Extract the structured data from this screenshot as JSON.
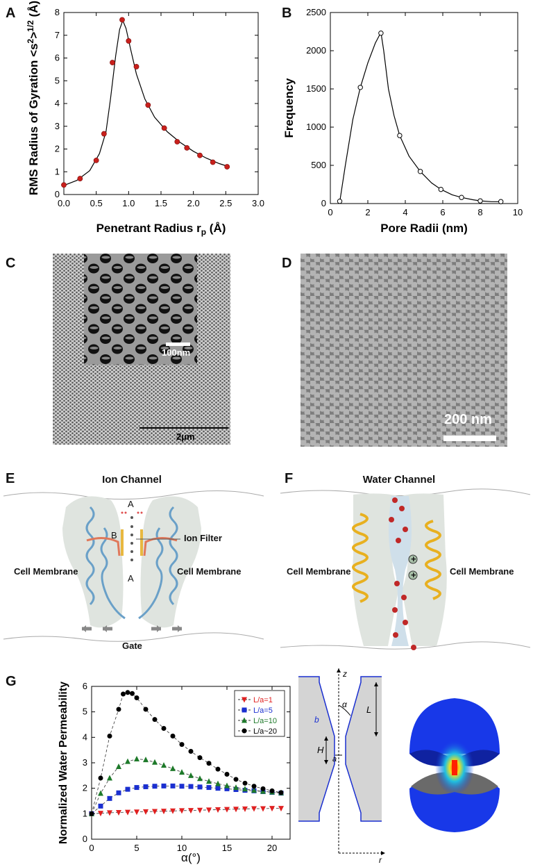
{
  "panels": {
    "A": {
      "letter": "A"
    },
    "B": {
      "letter": "B"
    },
    "C": {
      "letter": "C",
      "inset_scale": "100nm",
      "main_scale": "2μm"
    },
    "D": {
      "letter": "D",
      "scale": "200 nm"
    },
    "E": {
      "letter": "E",
      "title": "Ion Channel",
      "label_filter": "Ion Filter",
      "label_left": "Cell Membrane",
      "label_right": "Cell Membrane",
      "label_gate": "Gate",
      "site_a_top": "A",
      "site_b": "B",
      "site_a_bottom": "A"
    },
    "F": {
      "letter": "F",
      "title": "Water Channel",
      "label_left": "Cell Membrane",
      "label_right": "Cell Membrane",
      "charge_symbol": "+"
    },
    "G": {
      "letter": "G",
      "schematic": {
        "b": "b",
        "z": "z",
        "alpha": "α",
        "L": "L",
        "H": "H",
        "a": "a",
        "r": "r"
      }
    }
  },
  "chart_data": [
    {
      "id": "A",
      "type": "scatter",
      "xlabel": "Penetrant Radius r",
      "xlabel_sub": "p",
      "xlabel_unit": " (Å)",
      "ylabel": "RMS Radius of Gyration <s",
      "ylabel_sup": "2",
      "ylabel_mid": ">",
      "ylabel_sup2": "1/2",
      "ylabel_unit": " (Å)",
      "xlim": [
        0,
        3.0
      ],
      "ylim": [
        0,
        8
      ],
      "xticks": [
        "0.0",
        "0.5",
        "1.0",
        "1.5",
        "2.0",
        "2.5",
        "3.0"
      ],
      "yticks": [
        "0",
        "1",
        "2",
        "3",
        "4",
        "5",
        "6",
        "7",
        "8"
      ],
      "marker_color": "#c8201c",
      "points": [
        [
          0.0,
          0.42
        ],
        [
          0.25,
          0.7
        ],
        [
          0.5,
          1.5
        ],
        [
          0.62,
          2.67
        ],
        [
          0.75,
          5.8
        ],
        [
          0.9,
          7.68
        ],
        [
          1.0,
          6.75
        ],
        [
          1.12,
          5.62
        ],
        [
          1.3,
          3.93
        ],
        [
          1.55,
          2.92
        ],
        [
          1.75,
          2.32
        ],
        [
          1.9,
          2.05
        ],
        [
          2.1,
          1.72
        ],
        [
          2.3,
          1.42
        ],
        [
          2.52,
          1.22
        ]
      ],
      "curve": [
        [
          0.0,
          0.4
        ],
        [
          0.2,
          0.62
        ],
        [
          0.4,
          1.05
        ],
        [
          0.55,
          1.8
        ],
        [
          0.65,
          2.75
        ],
        [
          0.72,
          4.2
        ],
        [
          0.8,
          6.1
        ],
        [
          0.86,
          7.25
        ],
        [
          0.91,
          7.65
        ],
        [
          0.96,
          7.3
        ],
        [
          1.03,
          6.4
        ],
        [
          1.12,
          5.3
        ],
        [
          1.25,
          4.2
        ],
        [
          1.4,
          3.4
        ],
        [
          1.6,
          2.75
        ],
        [
          1.8,
          2.28
        ],
        [
          2.0,
          1.9
        ],
        [
          2.2,
          1.6
        ],
        [
          2.4,
          1.36
        ],
        [
          2.55,
          1.22
        ]
      ]
    },
    {
      "id": "B",
      "type": "line",
      "xlabel": "Pore Radii (nm)",
      "ylabel": "Frequency",
      "xlim": [
        0,
        10
      ],
      "ylim": [
        0,
        2500
      ],
      "xticks": [
        "0",
        "2",
        "4",
        "6",
        "8",
        "10"
      ],
      "yticks": [
        "0",
        "500",
        "1000",
        "1500",
        "2000",
        "2500"
      ],
      "points": [
        [
          0.5,
          30
        ],
        [
          1.6,
          1520
        ],
        [
          2.7,
          2230
        ],
        [
          3.7,
          890
        ],
        [
          4.8,
          420
        ],
        [
          5.9,
          185
        ],
        [
          7.0,
          80
        ],
        [
          8.0,
          35
        ],
        [
          9.1,
          25
        ]
      ],
      "curve": [
        [
          0.5,
          20
        ],
        [
          0.8,
          500
        ],
        [
          1.2,
          1100
        ],
        [
          1.6,
          1520
        ],
        [
          2.0,
          1840
        ],
        [
          2.4,
          2100
        ],
        [
          2.7,
          2240
        ],
        [
          2.85,
          2000
        ],
        [
          3.1,
          1500
        ],
        [
          3.4,
          1150
        ],
        [
          3.7,
          890
        ],
        [
          4.2,
          620
        ],
        [
          4.8,
          420
        ],
        [
          5.4,
          270
        ],
        [
          5.9,
          185
        ],
        [
          6.5,
          115
        ],
        [
          7.0,
          80
        ],
        [
          7.6,
          50
        ],
        [
          8.0,
          35
        ],
        [
          8.6,
          25
        ],
        [
          9.1,
          25
        ]
      ]
    },
    {
      "id": "G",
      "type": "scatter",
      "xlabel": "α(°)",
      "ylabel": "Normalized Water Permeability",
      "xlim": [
        0,
        22
      ],
      "ylim": [
        0,
        6
      ],
      "xticks": [
        "0",
        "5",
        "10",
        "15",
        "20"
      ],
      "yticks": [
        "0",
        "1",
        "2",
        "3",
        "4",
        "5",
        "6"
      ],
      "legend_position": "top-right",
      "series": [
        {
          "name": "L/a=1",
          "color": "#e02020",
          "marker": "triangle-down",
          "values": [
            [
              0,
              1.0
            ],
            [
              1,
              1.02
            ],
            [
              2,
              1.04
            ],
            [
              3,
              1.05
            ],
            [
              4,
              1.06
            ],
            [
              5,
              1.07
            ],
            [
              6,
              1.08
            ],
            [
              7,
              1.09
            ],
            [
              8,
              1.1
            ],
            [
              9,
              1.11
            ],
            [
              10,
              1.12
            ],
            [
              11,
              1.13
            ],
            [
              12,
              1.14
            ],
            [
              13,
              1.15
            ],
            [
              14,
              1.16
            ],
            [
              15,
              1.17
            ],
            [
              16,
              1.18
            ],
            [
              17,
              1.19
            ],
            [
              18,
              1.2
            ],
            [
              19,
              1.2
            ],
            [
              20,
              1.21
            ],
            [
              21,
              1.21
            ]
          ]
        },
        {
          "name": "L/a=5",
          "color": "#1a2fd0",
          "marker": "square",
          "values": [
            [
              0,
              1.0
            ],
            [
              1,
              1.3
            ],
            [
              2,
              1.6
            ],
            [
              3,
              1.82
            ],
            [
              4,
              1.96
            ],
            [
              5,
              2.03
            ],
            [
              6,
              2.06
            ],
            [
              7,
              2.08
            ],
            [
              8,
              2.09
            ],
            [
              9,
              2.09
            ],
            [
              10,
              2.08
            ],
            [
              11,
              2.07
            ],
            [
              12,
              2.05
            ],
            [
              13,
              2.03
            ],
            [
              14,
              2.0
            ],
            [
              15,
              1.98
            ],
            [
              16,
              1.95
            ],
            [
              17,
              1.92
            ],
            [
              18,
              1.9
            ],
            [
              19,
              1.87
            ],
            [
              20,
              1.84
            ],
            [
              21,
              1.81
            ]
          ]
        },
        {
          "name": "L/a=10",
          "color": "#1e7a2a",
          "marker": "triangle-up",
          "values": [
            [
              0,
              1.0
            ],
            [
              1,
              1.8
            ],
            [
              2,
              2.4
            ],
            [
              3,
              2.85
            ],
            [
              4,
              3.05
            ],
            [
              5,
              3.15
            ],
            [
              6,
              3.12
            ],
            [
              7,
              3.02
            ],
            [
              8,
              2.9
            ],
            [
              9,
              2.77
            ],
            [
              10,
              2.63
            ],
            [
              11,
              2.5
            ],
            [
              12,
              2.38
            ],
            [
              13,
              2.27
            ],
            [
              14,
              2.18
            ],
            [
              15,
              2.1
            ],
            [
              16,
              2.03
            ],
            [
              17,
              1.97
            ],
            [
              18,
              1.92
            ],
            [
              19,
              1.88
            ],
            [
              20,
              1.85
            ],
            [
              21,
              1.82
            ]
          ]
        },
        {
          "name": "L/a~20",
          "color": "#000000",
          "marker": "circle",
          "values": [
            [
              0,
              1.0
            ],
            [
              1,
              2.4
            ],
            [
              2,
              4.05
            ],
            [
              3,
              5.1
            ],
            [
              3.5,
              5.7
            ],
            [
              4,
              5.76
            ],
            [
              4.5,
              5.72
            ],
            [
              5,
              5.55
            ],
            [
              6,
              5.1
            ],
            [
              7,
              4.7
            ],
            [
              8,
              4.35
            ],
            [
              9,
              4.05
            ],
            [
              10,
              3.72
            ],
            [
              11,
              3.45
            ],
            [
              12,
              3.2
            ],
            [
              13,
              2.98
            ],
            [
              14,
              2.75
            ],
            [
              15,
              2.55
            ],
            [
              16,
              2.35
            ],
            [
              17,
              2.2
            ],
            [
              18,
              2.08
            ],
            [
              19,
              1.98
            ],
            [
              20,
              1.9
            ],
            [
              21,
              1.83
            ]
          ]
        }
      ]
    }
  ]
}
